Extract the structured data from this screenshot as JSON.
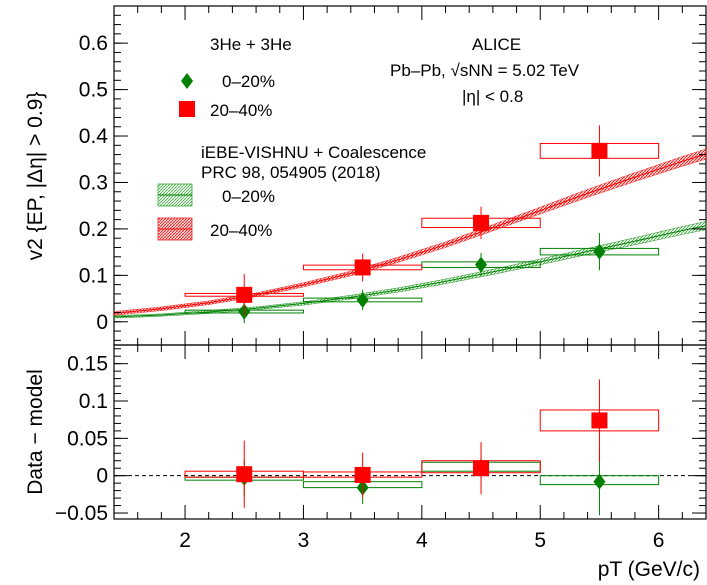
{
  "chart_data": [
    {
      "type": "scatter",
      "panel": "top",
      "ylabel": "v2 {EP, |Δη| > 0.9}",
      "xlim": [
        1.4,
        6.4
      ],
      "ylim": [
        -0.05,
        0.68
      ],
      "yticks": [
        "0",
        "0.1",
        "0.2",
        "0.3",
        "0.4",
        "0.5",
        "0.6"
      ],
      "experiment": {
        "collaboration": "ALICE",
        "system": "Pb–Pb, √sNN = 5.02 TeV",
        "cut": "|η| < 0.8"
      },
      "data_legend": {
        "title": "3He + 3He",
        "entries": [
          "0–20%",
          "20–40%"
        ]
      },
      "model_legend": {
        "title": "iEBE-VISHNU + Coalescence",
        "reference": "PRC 98, 054905 (2018)",
        "entries": [
          "0–20%",
          "20–40%"
        ]
      },
      "series": [
        {
          "name": "0–20%",
          "color": "#008000",
          "marker": "diamond",
          "points": [
            {
              "x": 2.5,
              "y": 0.022,
              "ystat": 0.025,
              "xlo": 2.0,
              "xhi": 3.0,
              "ysys": 0.003
            },
            {
              "x": 3.5,
              "y": 0.047,
              "ystat": 0.022,
              "xlo": 3.0,
              "xhi": 4.0,
              "ysys": 0.004
            },
            {
              "x": 4.5,
              "y": 0.123,
              "ystat": 0.025,
              "xlo": 4.0,
              "xhi": 5.0,
              "ysys": 0.006
            },
            {
              "x": 5.5,
              "y": 0.151,
              "ystat": 0.04,
              "xlo": 5.0,
              "xhi": 6.0,
              "ysys": 0.007
            }
          ],
          "model": {
            "x": [
              1.4,
              1.8,
              2.2,
              2.6,
              3.0,
              3.4,
              3.8,
              4.2,
              4.6,
              5.0,
              5.4,
              5.8,
              6.2,
              6.4
            ],
            "lo": [
              0.008,
              0.012,
              0.018,
              0.026,
              0.036,
              0.049,
              0.064,
              0.082,
              0.102,
              0.123,
              0.145,
              0.166,
              0.188,
              0.198
            ],
            "hi": [
              0.013,
              0.017,
              0.024,
              0.032,
              0.043,
              0.057,
              0.073,
              0.092,
              0.113,
              0.135,
              0.158,
              0.181,
              0.205,
              0.216
            ]
          }
        },
        {
          "name": "20–40%",
          "color": "#ff0000",
          "marker": "square",
          "points": [
            {
              "x": 2.5,
              "y": 0.058,
              "ystat": 0.045,
              "xlo": 2.0,
              "xhi": 3.0,
              "ysys": 0.003
            },
            {
              "x": 3.5,
              "y": 0.117,
              "ystat": 0.03,
              "xlo": 3.0,
              "xhi": 4.0,
              "ysys": 0.005
            },
            {
              "x": 4.5,
              "y": 0.213,
              "ystat": 0.035,
              "xlo": 4.0,
              "xhi": 5.0,
              "ysys": 0.01
            },
            {
              "x": 5.5,
              "y": 0.368,
              "ystat": 0.055,
              "xlo": 5.0,
              "xhi": 6.0,
              "ysys": 0.016
            }
          ],
          "model": {
            "x": [
              1.4,
              1.8,
              2.2,
              2.6,
              3.0,
              3.4,
              3.8,
              4.2,
              4.6,
              5.0,
              5.4,
              5.8,
              6.2,
              6.4
            ],
            "lo": [
              0.014,
              0.024,
              0.037,
              0.054,
              0.075,
              0.099,
              0.128,
              0.16,
              0.196,
              0.232,
              0.268,
              0.302,
              0.335,
              0.35
            ],
            "hi": [
              0.022,
              0.032,
              0.045,
              0.062,
              0.084,
              0.109,
              0.139,
              0.172,
              0.209,
              0.247,
              0.285,
              0.321,
              0.356,
              0.372
            ]
          }
        }
      ]
    },
    {
      "type": "scatter",
      "panel": "bottom",
      "ylabel": "Data − model",
      "xlabel": "pT (GeV/c)",
      "xlim": [
        1.4,
        6.4
      ],
      "ylim": [
        -0.058,
        0.175
      ],
      "xticks": [
        "2",
        "3",
        "4",
        "5",
        "6"
      ],
      "yticks": [
        "−0.05",
        "0",
        "0.05",
        "0.1",
        "0.15"
      ],
      "reference_line": 0,
      "series": [
        {
          "name": "0–20%",
          "color": "#008000",
          "marker": "diamond",
          "points": [
            {
              "x": 2.5,
              "y": -0.003,
              "ystat": 0.025,
              "xlo": 2.0,
              "xhi": 3.0,
              "ysyslo": -0.006,
              "ysyshi": -0.002
            },
            {
              "x": 3.5,
              "y": -0.016,
              "ystat": 0.022,
              "xlo": 3.0,
              "xhi": 4.0,
              "ysyslo": -0.016,
              "ysyshi": -0.008
            },
            {
              "x": 4.5,
              "y": 0.012,
              "ystat": 0.03,
              "xlo": 4.0,
              "xhi": 5.0,
              "ysyslo": 0.006,
              "ysyshi": 0.018
            },
            {
              "x": 5.5,
              "y": -0.008,
              "ystat": 0.045,
              "xlo": 5.0,
              "xhi": 6.0,
              "ysyslo": -0.012,
              "ysyshi": 0.0
            }
          ]
        },
        {
          "name": "20–40%",
          "color": "#ff0000",
          "marker": "square",
          "points": [
            {
              "x": 2.5,
              "y": 0.002,
              "ystat": 0.045,
              "xlo": 2.0,
              "xhi": 3.0,
              "ysyslo": -0.002,
              "ysyshi": 0.006
            },
            {
              "x": 3.5,
              "y": 0.001,
              "ystat": 0.03,
              "xlo": 3.0,
              "xhi": 4.0,
              "ysyslo": -0.002,
              "ysyshi": 0.005
            },
            {
              "x": 4.5,
              "y": 0.01,
              "ystat": 0.035,
              "xlo": 4.0,
              "xhi": 5.0,
              "ysyslo": 0.004,
              "ysyshi": 0.02
            },
            {
              "x": 5.5,
              "y": 0.074,
              "ystat": 0.055,
              "xlo": 5.0,
              "xhi": 6.0,
              "ysyslo": 0.06,
              "ysyshi": 0.088
            }
          ]
        }
      ]
    }
  ]
}
